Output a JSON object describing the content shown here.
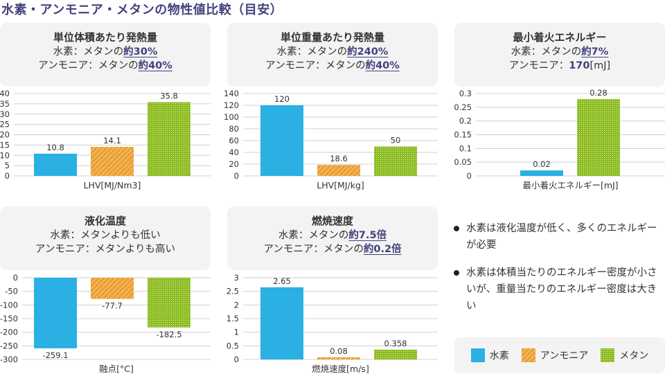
{
  "page": {
    "title": "水素・アンモニア・メタンの物性値比較（目安）"
  },
  "colors": {
    "hydrogen": "#2ab0e3",
    "ammonia": "#eba032",
    "methane": "#8cbc22",
    "accent": "#43427e",
    "grid": "#d0d0d0"
  },
  "cards": [
    {
      "title": "単位体積あたり発熱量",
      "line1_prefix": "水素：メタンの",
      "line1_value": "約30%",
      "line2_prefix": "アンモニア：メタンの",
      "line2_value": "約40%"
    },
    {
      "title": "単位重量あたり発熱量",
      "line1_prefix": "水素：メタンの",
      "line1_value": "約240%",
      "line2_prefix": "アンモニア：メタンの",
      "line2_value": "約40%"
    },
    {
      "title": "最小着火エネルギー",
      "line1_prefix": "水素：メタンの",
      "line1_value": "約7%",
      "line2_prefix": "アンモニア：",
      "line2_value": "170",
      "line2_suffix": "[mJ]"
    },
    {
      "title": "液化温度",
      "line1_prefix": "水素：メタンよりも低い",
      "line2_prefix": "アンモニア：メタンよりも高い"
    },
    {
      "title": "燃焼速度",
      "line1_prefix": "水素：メタンの",
      "line1_value": "約7.5倍",
      "line2_prefix": "アンモニア：メタンの",
      "line2_value": "約0.2倍"
    }
  ],
  "notes": [
    "水素は液化温度が低く、多くのエネルギーが必要",
    "水素は体積当たりのエネルギー密度が小さいが、重量当たりのエネルギー密度は大きい"
  ],
  "legend": [
    {
      "key": "hydrogen",
      "label": "水素"
    },
    {
      "key": "ammonia",
      "label": "アンモニア"
    },
    {
      "key": "methane",
      "label": "メタン"
    }
  ],
  "chart_data": [
    {
      "type": "bar",
      "title": "単位体積あたり発熱量",
      "xlabel": "LHV[MJ/Nm3]",
      "ylabel": "",
      "ylim": [
        0,
        40
      ],
      "yticks": [
        0,
        5,
        10,
        15,
        20,
        25,
        30,
        35,
        40
      ],
      "ytick_labels": [
        "0",
        "5",
        "10",
        "15",
        "20",
        "25",
        "30",
        "35",
        "40"
      ],
      "grid": true,
      "categories": [
        "水素",
        "アンモニア",
        "メタン"
      ],
      "values": [
        10.8,
        14.1,
        35.8
      ],
      "data_labels": [
        "10.8",
        "14.1",
        "35.8"
      ]
    },
    {
      "type": "bar",
      "title": "単位重量あたり発熱量",
      "xlabel": "LHV[MJ/kg]",
      "ylabel": "",
      "ylim": [
        0,
        140
      ],
      "yticks": [
        0,
        20,
        40,
        60,
        80,
        100,
        120,
        140
      ],
      "ytick_labels": [
        "0",
        "20",
        "40",
        "60",
        "80",
        "100",
        "120",
        "140"
      ],
      "grid": true,
      "categories": [
        "水素",
        "アンモニア",
        "メタン"
      ],
      "values": [
        120,
        18.6,
        50
      ],
      "data_labels": [
        "120",
        "18.6",
        "50"
      ]
    },
    {
      "type": "bar",
      "title": "最小着火エネルギー",
      "xlabel": "最小着火エネルギー[mJ]",
      "ylabel": "",
      "ylim": [
        0,
        0.3
      ],
      "yticks": [
        0,
        0.05,
        0.1,
        0.15,
        0.2,
        0.25,
        0.3
      ],
      "ytick_labels": [
        "0",
        "0.05",
        "0.1",
        "0.15",
        "0.2",
        "0.25",
        "0.3"
      ],
      "grid": true,
      "categories": [
        "水素",
        "メタン"
      ],
      "series_keys": [
        "hydrogen",
        "methane"
      ],
      "values": [
        0.02,
        0.28
      ],
      "data_labels": [
        "0.02",
        "0.28"
      ]
    },
    {
      "type": "bar",
      "title": "液化温度",
      "xlabel": "融点[°C]",
      "ylabel": "",
      "ylim": [
        -300,
        0
      ],
      "yticks": [
        0,
        -50,
        -100,
        -150,
        -200,
        -250,
        -300
      ],
      "ytick_labels": [
        "0",
        "-50",
        "-100",
        "-150",
        "-200",
        "-250",
        "-300"
      ],
      "grid": true,
      "categories": [
        "水素",
        "アンモニア",
        "メタン"
      ],
      "values": [
        -259.1,
        -77.7,
        -182.5
      ],
      "data_labels": [
        "-259.1",
        "-77.7",
        "-182.5"
      ]
    },
    {
      "type": "bar",
      "title": "燃焼速度",
      "xlabel": "燃焼速度[m/s]",
      "ylabel": "",
      "ylim": [
        0,
        3
      ],
      "yticks": [
        0,
        0.5,
        1,
        1.5,
        2,
        2.5,
        3
      ],
      "ytick_labels": [
        "0",
        "0.5",
        "1",
        "1.5",
        "2",
        "2.5",
        "3"
      ],
      "grid": true,
      "categories": [
        "水素",
        "アンモニア",
        "メタン"
      ],
      "values": [
        2.65,
        0.08,
        0.358
      ],
      "data_labels": [
        "2.65",
        "0.08",
        "0.358"
      ]
    }
  ]
}
